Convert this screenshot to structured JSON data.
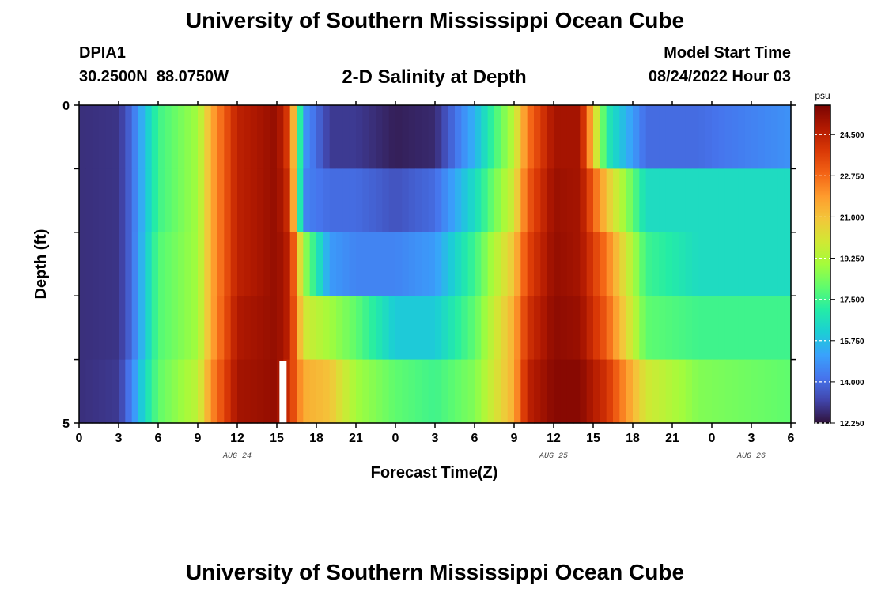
{
  "header": {
    "title": "University of Southern Mississippi Ocean Cube",
    "station_id": "DPIA1",
    "station_coords": "30.2500N  88.0750W",
    "subtitle": "2-D Salinity at Depth",
    "model_start_label": "Model Start Time",
    "model_start_value": "08/24/2022 Hour 03"
  },
  "footer": {
    "title": "University of Southern Mississippi Ocean Cube"
  },
  "chart_data": {
    "type": "heatmap",
    "title": "2-D Salinity at Depth",
    "xlabel": "Forecast Time(Z)",
    "ylabel": "Depth (ft)",
    "x_hours_since_aug24_00": [
      0,
      54
    ],
    "xlim_hours": [
      0,
      54
    ],
    "x_tick_labels": [
      "0",
      "3",
      "6",
      "9",
      "12",
      "15",
      "18",
      "21",
      "0",
      "3",
      "6",
      "9",
      "12",
      "15",
      "18",
      "21",
      "0",
      "3",
      "6"
    ],
    "date_labels": [
      {
        "label": "AUG 24",
        "hour": 12
      },
      {
        "label": "AUG 25",
        "hour": 36
      },
      {
        "label": "AUG 26",
        "hour": 51
      }
    ],
    "ylim": [
      0,
      5
    ],
    "y_tick_labels": [
      "0",
      "5"
    ],
    "depth_levels": 5,
    "colorbar": {
      "unit": "psu",
      "min": 12.25,
      "max": 25.75,
      "tick_labels": [
        "24.500",
        "22.750",
        "21.000",
        "19.250",
        "17.500",
        "15.750",
        "14.000",
        "12.250"
      ],
      "colormap": [
        "#30123b",
        "#4145ab",
        "#4675ed",
        "#39a2fc",
        "#1bcfd4",
        "#24eca6",
        "#61fc6c",
        "#a4fc3b",
        "#d1e834",
        "#f3c63a",
        "#fe9b2d",
        "#f36315",
        "#d93806",
        "#b11901",
        "#7a0402"
      ]
    },
    "missing_cells": [
      {
        "hour": 15.5,
        "depth_index": 4
      }
    ],
    "time_keypoints_hours": [
      0,
      3,
      4,
      5,
      6,
      9,
      10,
      12,
      15,
      16,
      17,
      19,
      21,
      24,
      27,
      30,
      33,
      34,
      36,
      38,
      40,
      43,
      47,
      54
    ],
    "values_by_depth": [
      {
        "depth_index": 0,
        "values": [
          12.8,
          12.9,
          14.0,
          15.8,
          17.5,
          19.0,
          21.5,
          24.5,
          25.3,
          23.5,
          15.0,
          13.0,
          13.0,
          12.5,
          12.7,
          15.5,
          19.5,
          22.5,
          25.0,
          25.0,
          17.0,
          14.0,
          14.0,
          14.8
        ]
      },
      {
        "depth_index": 1,
        "values": [
          12.8,
          12.9,
          14.0,
          15.8,
          17.5,
          19.0,
          21.5,
          24.5,
          25.3,
          24.0,
          14.5,
          14.0,
          14.0,
          13.5,
          14.0,
          16.5,
          20.0,
          23.0,
          25.2,
          25.0,
          21.0,
          16.5,
          16.5,
          16.5
        ]
      },
      {
        "depth_index": 2,
        "values": [
          12.8,
          12.9,
          14.0,
          16.0,
          17.8,
          19.0,
          21.5,
          24.5,
          25.3,
          24.5,
          19.0,
          15.0,
          14.5,
          14.5,
          15.0,
          17.5,
          21.0,
          23.5,
          25.3,
          25.0,
          22.5,
          17.5,
          16.5,
          16.5
        ]
      },
      {
        "depth_index": 3,
        "values": [
          12.8,
          12.9,
          14.0,
          16.0,
          17.8,
          19.0,
          21.5,
          24.8,
          25.3,
          24.5,
          20.0,
          19.0,
          18.0,
          16.0,
          16.0,
          18.0,
          21.5,
          24.0,
          25.4,
          25.2,
          23.0,
          18.0,
          17.5,
          17.5
        ]
      },
      {
        "depth_index": 4,
        "values": [
          12.8,
          13.0,
          14.5,
          16.5,
          18.0,
          19.5,
          22.0,
          25.0,
          25.3,
          24.0,
          21.5,
          21.0,
          19.0,
          18.0,
          17.5,
          18.5,
          21.5,
          24.5,
          25.5,
          25.5,
          24.0,
          20.0,
          18.5,
          18.0
        ]
      }
    ]
  }
}
